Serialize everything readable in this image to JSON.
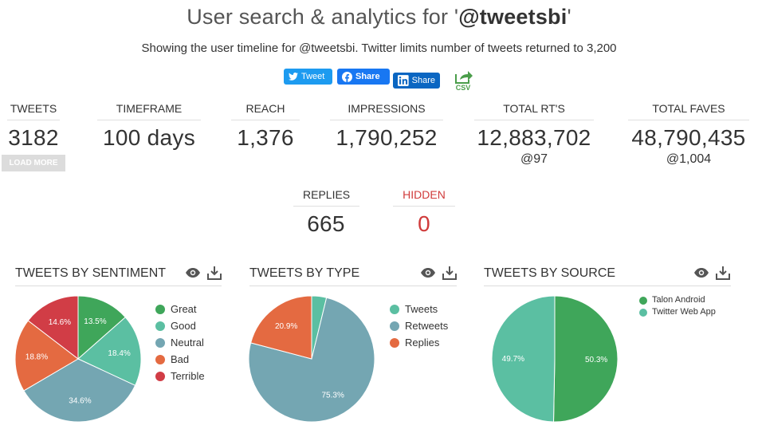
{
  "header": {
    "title_prefix": "User search & analytics for '",
    "title_handle": "@tweetsbi",
    "title_suffix": "'",
    "subtitle": "Showing the user timeline for @tweetsbi. Twitter limits number of tweets returned to 3,200"
  },
  "share": {
    "tweet_label": "Tweet",
    "facebook_label": "Share",
    "linkedin_label": "Share",
    "csv_label": "CSV"
  },
  "stats": {
    "tweets": {
      "label": "TWEETS",
      "value": "3182",
      "load_more": "LOAD MORE"
    },
    "timeframe": {
      "label": "TIMEFRAME",
      "value": "100 days"
    },
    "reach": {
      "label": "REACH",
      "value": "1,376"
    },
    "impressions": {
      "label": "IMPRESSIONS",
      "value": "1,790,252"
    },
    "total_rts": {
      "label": "TOTAL RT'S",
      "value": "12,883,702",
      "sub": "@97"
    },
    "total_faves": {
      "label": "TOTAL FAVES",
      "value": "48,790,435",
      "sub": "@1,004"
    },
    "replies": {
      "label": "REPLIES",
      "value": "665"
    },
    "hidden": {
      "label": "HIDDEN",
      "value": "0"
    }
  },
  "colors": {
    "great": "#3fa65a",
    "good": "#5bbfa2",
    "neutral": "#74a6b2",
    "bad": "#e46a41",
    "terrible": "#d13d46",
    "hidden": "#d03b3b"
  },
  "chart_data": [
    {
      "type": "pie",
      "title": "TWEETS BY SENTIMENT",
      "categories": [
        "Great",
        "Good",
        "Neutral",
        "Bad",
        "Terrible"
      ],
      "values": [
        13.5,
        18.4,
        34.6,
        18.8,
        14.6
      ],
      "labels": [
        "13.5%",
        "18.4%",
        "34.6%",
        "18.8%",
        "14.6%"
      ],
      "colors": [
        "#3fa65a",
        "#5bbfa2",
        "#74a6b2",
        "#e46a41",
        "#d13d46"
      ],
      "legend": "right"
    },
    {
      "type": "pie",
      "title": "TWEETS BY TYPE",
      "categories": [
        "Tweets",
        "Retweets",
        "Replies"
      ],
      "values": [
        3.8,
        75.3,
        20.9
      ],
      "labels": [
        "",
        "75.3%",
        "20.9%"
      ],
      "colors": [
        "#5bbfa2",
        "#74a6b2",
        "#e46a41"
      ],
      "legend": "right"
    },
    {
      "type": "pie",
      "title": "TWEETS BY SOURCE",
      "categories": [
        "Talon Android",
        "Twitter Web App"
      ],
      "values": [
        50.3,
        49.7
      ],
      "labels": [
        "50.3%",
        "49.7%"
      ],
      "colors": [
        "#3fa65a",
        "#5bbfa2"
      ],
      "legend": "right"
    }
  ]
}
